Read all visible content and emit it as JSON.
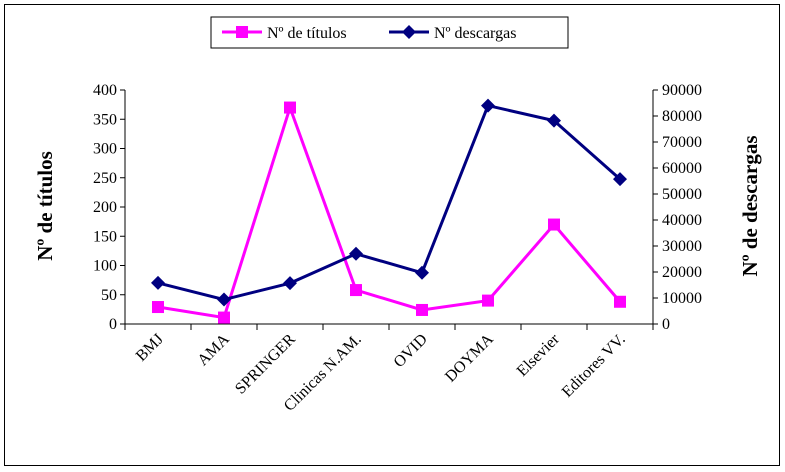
{
  "chart_data": {
    "type": "line",
    "categories": [
      "BMJ",
      "AMA",
      "SPRINGER",
      "Clinicas N.AM.",
      "OVID",
      "DOYMA",
      "Elsevier",
      "Editores VV."
    ],
    "series": [
      {
        "name": "Nº de títulos",
        "axis": "left",
        "color": "#ff00ff",
        "marker": "square",
        "values": [
          29,
          11,
          370,
          58,
          24,
          40,
          170,
          38
        ]
      },
      {
        "name": "Nº descargas",
        "axis": "right",
        "color": "#000080",
        "marker": "diamond",
        "values": [
          15800,
          9400,
          15700,
          27000,
          19700,
          84000,
          78200,
          55700
        ]
      }
    ],
    "ylabel": "Nº de títulos",
    "y2label": "Nº de descargas",
    "ylim": [
      0,
      400
    ],
    "y2lim": [
      0,
      90000
    ],
    "yticks": [
      0,
      50,
      100,
      150,
      200,
      250,
      300,
      350,
      400
    ],
    "y2ticks": [
      0,
      10000,
      20000,
      30000,
      40000,
      50000,
      60000,
      70000,
      80000,
      90000
    ],
    "grid": false,
    "legend_position": "top"
  }
}
